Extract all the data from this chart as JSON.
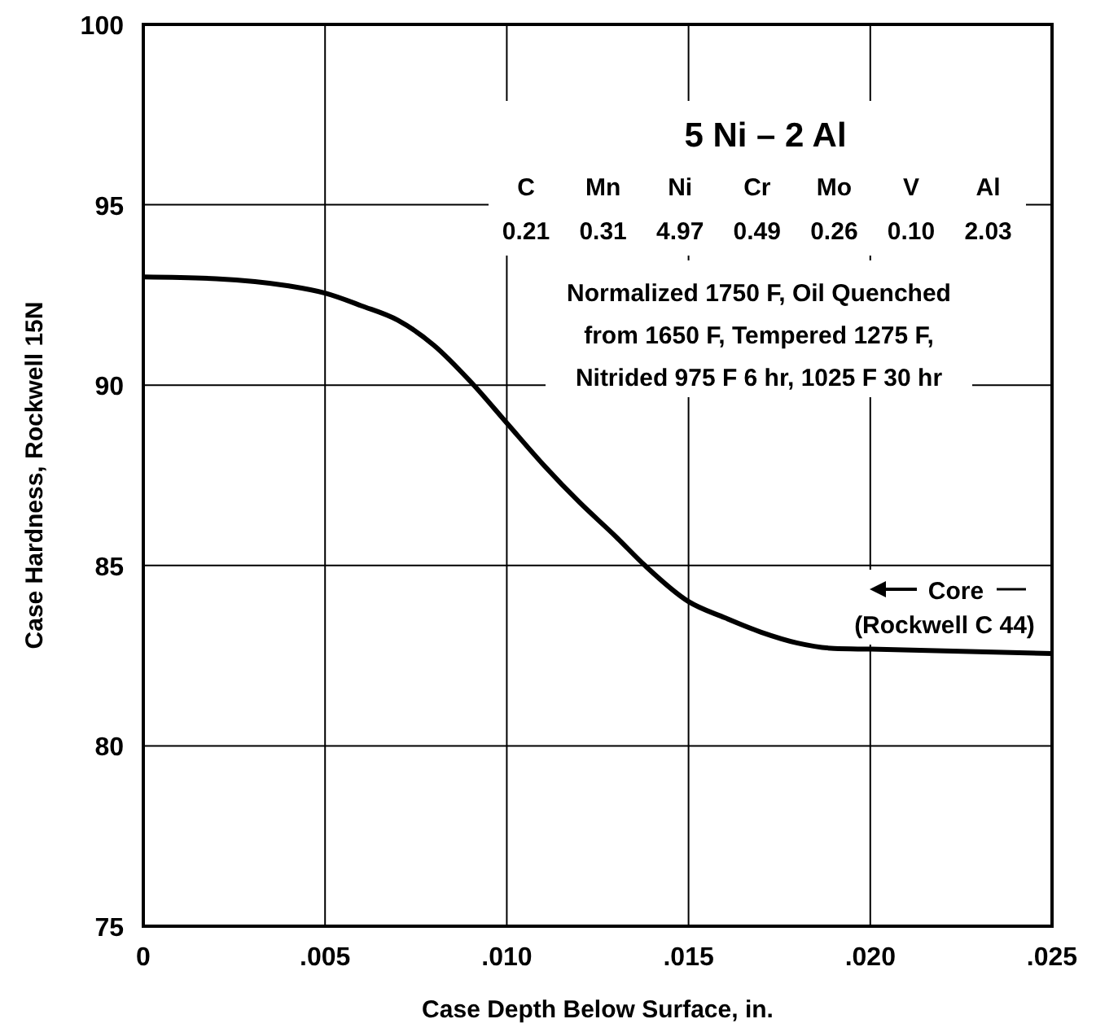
{
  "chart_data": {
    "type": "line",
    "xlabel": "Case Depth Below Surface, in.",
    "ylabel": "Case Hardness, Rockwell 15N",
    "x": [
      0,
      0.002,
      0.004,
      0.005,
      0.006,
      0.007,
      0.008,
      0.009,
      0.01,
      0.011,
      0.012,
      0.013,
      0.0138,
      0.015,
      0.016,
      0.017,
      0.018,
      0.019,
      0.02,
      0.025
    ],
    "series": [
      {
        "color": "#000000",
        "values": [
          93.0,
          92.95,
          92.75,
          92.55,
          92.2,
          91.8,
          91.1,
          90.1,
          88.95,
          87.8,
          86.75,
          85.8,
          85.0,
          84.0,
          83.55,
          83.15,
          82.85,
          82.7,
          82.68,
          82.56
        ]
      }
    ],
    "xlim": [
      0,
      0.025
    ],
    "ylim": [
      75,
      100
    ],
    "xticks": [
      {
        "value": 0,
        "label": "0"
      },
      {
        "value": 0.005,
        "label": ".005"
      },
      {
        "value": 0.01,
        "label": ".010"
      },
      {
        "value": 0.015,
        "label": ".015"
      },
      {
        "value": 0.02,
        "label": ".020"
      },
      {
        "value": 0.025,
        "label": ".025"
      }
    ],
    "yticks": [
      75,
      80,
      85,
      90,
      95,
      100
    ],
    "grid": true,
    "marker": "none",
    "line_style": "solid",
    "annotations": [
      "5 Ni – 2 Al",
      "C",
      "Mn",
      "Ni",
      "Cr",
      "Mo",
      "V",
      "Al",
      "0.21",
      "0.31",
      "4.97",
      "0.49",
      "0.26",
      "0.10",
      "2.03",
      "Normalized 1750 F, Oil Quenched",
      "from 1650 F, Tempered 1275 F,",
      "Nitrided 975 F 6 hr, 1025 F 30 hr",
      "Core",
      "(Rockwell C 44)"
    ]
  }
}
